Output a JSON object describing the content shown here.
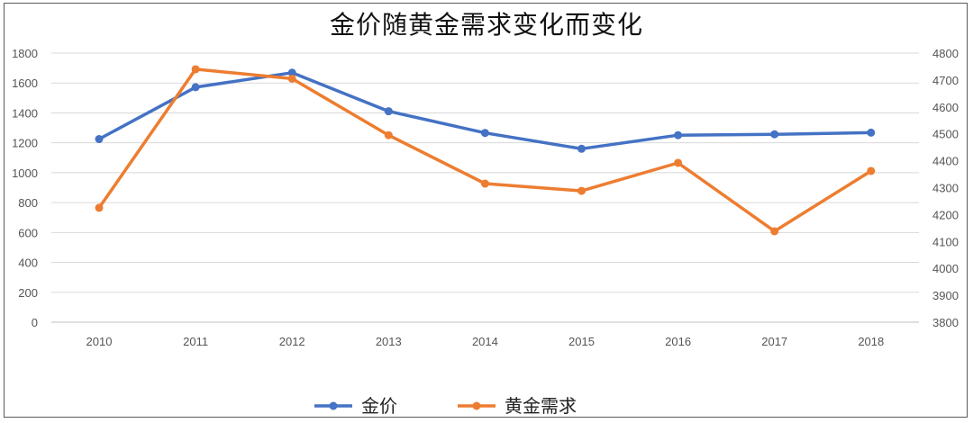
{
  "chart_data": {
    "type": "line",
    "title": "金价随黄金需求变化而变化",
    "xlabel": "",
    "ylabel": "",
    "categories": [
      "2010",
      "2011",
      "2012",
      "2013",
      "2014",
      "2015",
      "2016",
      "2017",
      "2018"
    ],
    "y_left": {
      "min": 0,
      "max": 1800,
      "step": 200,
      "ticks": [
        "0",
        "200",
        "400",
        "600",
        "800",
        "1000",
        "1200",
        "1400",
        "1600",
        "1800"
      ]
    },
    "y_right": {
      "min": 3800,
      "max": 4800,
      "step": 100,
      "ticks": [
        "3800",
        "3900",
        "4000",
        "4100",
        "4200",
        "4300",
        "4400",
        "4500",
        "4600",
        "4700",
        "4800"
      ]
    },
    "series": [
      {
        "name": "金价",
        "axis": "left",
        "color": "#4472C4",
        "values": [
          1225,
          1572,
          1669,
          1411,
          1266,
          1160,
          1251,
          1257,
          1268
        ]
      },
      {
        "name": "黄金需求",
        "axis": "right",
        "color": "#ED7D31",
        "values": [
          4225,
          4740,
          4705,
          4495,
          4315,
          4288,
          4392,
          4138,
          4362
        ]
      }
    ],
    "grid": true,
    "legend_position": "bottom"
  }
}
